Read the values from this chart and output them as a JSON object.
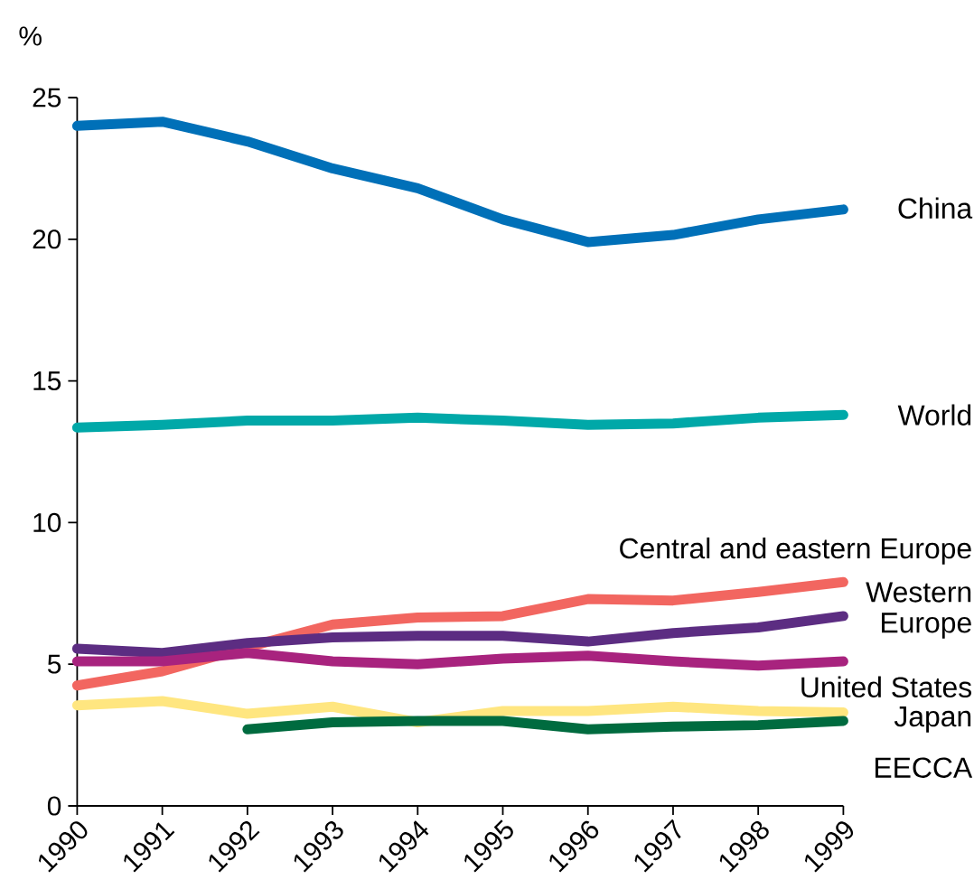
{
  "chart_data": {
    "type": "line",
    "ylabel": "%",
    "x": [
      1990,
      1991,
      1992,
      1993,
      1994,
      1995,
      1996,
      1997,
      1998,
      1999
    ],
    "xlim": [
      1990,
      1999
    ],
    "ylim": [
      0,
      25
    ],
    "xticks": [
      1990,
      1991,
      1992,
      1993,
      1994,
      1995,
      1996,
      1997,
      1998,
      1999
    ],
    "yticks": [
      0,
      5,
      10,
      15,
      20,
      25
    ],
    "grid": false,
    "marker": "none",
    "line_style": "solid",
    "series": [
      {
        "name": "China",
        "color": "#0070b8",
        "values": [
          24.0,
          24.15,
          23.45,
          22.5,
          21.8,
          20.7,
          19.9,
          20.15,
          20.7,
          21.05
        ]
      },
      {
        "name": "World",
        "color": "#00a8a8",
        "values": [
          13.35,
          13.45,
          13.6,
          13.6,
          13.7,
          13.6,
          13.45,
          13.5,
          13.7,
          13.8
        ]
      },
      {
        "name": "Central and eastern Europe",
        "color": "#f26660",
        "values": [
          4.25,
          4.75,
          5.6,
          6.4,
          6.65,
          6.7,
          7.3,
          7.25,
          7.55,
          7.9
        ]
      },
      {
        "name": "Western Europe",
        "color": "#5c2d82",
        "values": [
          5.55,
          5.4,
          5.75,
          5.95,
          6.0,
          6.0,
          5.8,
          6.1,
          6.3,
          6.7
        ]
      },
      {
        "name": "United States",
        "color": "#a8237e",
        "values": [
          5.1,
          5.1,
          5.4,
          5.1,
          5.0,
          5.2,
          5.3,
          5.1,
          4.95,
          5.1
        ]
      },
      {
        "name": "Japan",
        "color": "#ffe680",
        "values": [
          3.55,
          3.7,
          3.25,
          3.5,
          2.95,
          3.35,
          3.35,
          3.5,
          3.35,
          3.3
        ]
      },
      {
        "name": "EECCA",
        "color": "#006b3f",
        "values": [
          null,
          null,
          2.7,
          2.95,
          3.0,
          3.0,
          2.7,
          2.8,
          2.85,
          3.0
        ]
      }
    ]
  }
}
